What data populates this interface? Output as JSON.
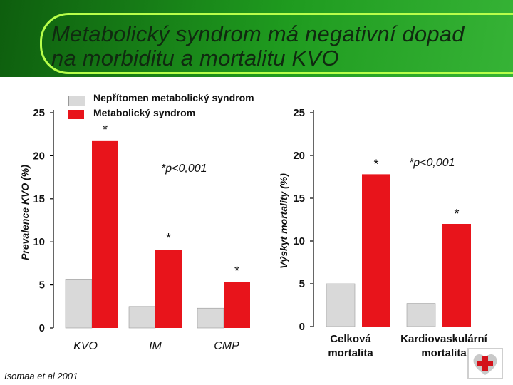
{
  "slide": {
    "title_line1": "Metabolický syndrom má negativní dopad",
    "title_line2": "na morbiditu a mortalitu KVO",
    "source": "Isomaa et al 2001",
    "logo_icon": "cross-heart-logo-icon"
  },
  "legend": {
    "items": [
      {
        "label": "Nepřítomen metabolický syndrom",
        "color": "#d9d9d9"
      },
      {
        "label": "Metabolický syndrom",
        "color": "#e8141b"
      }
    ]
  },
  "chart_data": [
    {
      "type": "bar",
      "title": "",
      "ylabel": "Prevalence KVO (%)",
      "ylim": [
        0,
        25
      ],
      "yticks": [
        "0",
        "5",
        "10",
        "15",
        "20",
        "25"
      ],
      "categories": [
        "KVO",
        "IM",
        "CMP"
      ],
      "series": [
        {
          "name": "Nepřítomen metabolický syndrom",
          "values": [
            5.6,
            2.5,
            2.3
          ]
        },
        {
          "name": "Metabolický syndrom",
          "values": [
            21.7,
            9.1,
            5.3
          ]
        }
      ],
      "significance_marks": [
        "*",
        "*",
        "*"
      ],
      "annotation": "*p<0,001"
    },
    {
      "type": "bar",
      "title": "",
      "ylabel": "Výskyt mortality (%)",
      "ylim": [
        0,
        25
      ],
      "yticks": [
        "0",
        "5",
        "10",
        "15",
        "20",
        "25"
      ],
      "categories": [
        "Celková mortalita",
        "Kardiovaskulární mortalita"
      ],
      "series": [
        {
          "name": "Nepřítomen metabolický syndrom",
          "values": [
            5.0,
            2.7
          ]
        },
        {
          "name": "Metabolický syndrom",
          "values": [
            17.8,
            12.0
          ]
        }
      ],
      "significance_marks": [
        "*",
        "*"
      ],
      "annotation": "*p<0,001"
    }
  ]
}
